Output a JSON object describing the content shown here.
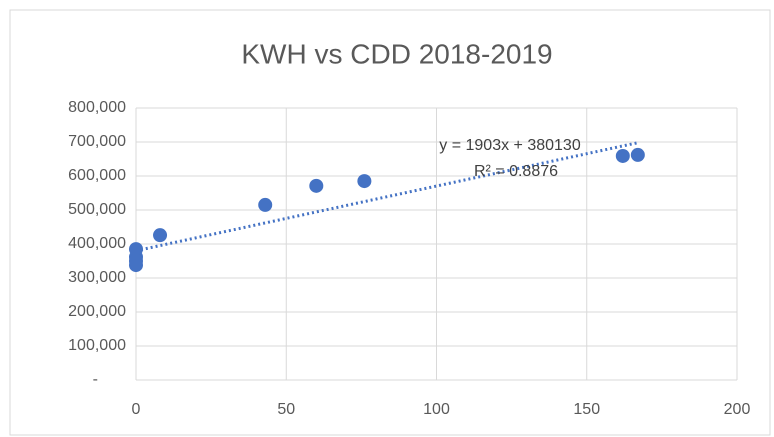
{
  "chart_data": {
    "type": "scatter",
    "title": "KWH vs CDD 2018-2019",
    "x": [
      0,
      0,
      0,
      0,
      8,
      43,
      60,
      76,
      162,
      167
    ],
    "series": [
      {
        "name": "KWH",
        "color": "#4472c4",
        "values": [
          338000,
          362000,
          385000,
          350000,
          426000,
          515000,
          571000,
          585000,
          659000,
          662000
        ]
      }
    ],
    "xlim": [
      0,
      200
    ],
    "xticks": [
      0,
      50,
      100,
      150,
      200
    ],
    "ylim": [
      0,
      800000
    ],
    "yticks": [
      {
        "value": 0,
        "label": "-"
      },
      {
        "value": 100000,
        "label": "100,000"
      },
      {
        "value": 200000,
        "label": "200,000"
      },
      {
        "value": 300000,
        "label": "300,000"
      },
      {
        "value": 400000,
        "label": "400,000"
      },
      {
        "value": 500000,
        "label": "500,000"
      },
      {
        "value": 600000,
        "label": "600,000"
      },
      {
        "value": 700000,
        "label": "700,000"
      },
      {
        "value": 800000,
        "label": "800,000"
      }
    ],
    "grid": true,
    "trendline": {
      "slope": 1903,
      "intercept": 380130,
      "equation": "y = 1903x + 380130",
      "r2": "R² = 0.8876"
    }
  }
}
